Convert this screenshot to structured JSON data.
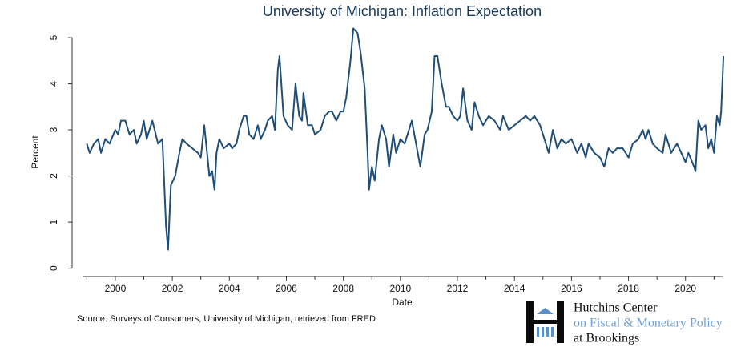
{
  "chart_data": {
    "type": "line",
    "title": "University of Michigan: Inflation Expectation",
    "xlabel": "Date",
    "ylabel": "Percent",
    "source": "Source: Surveys of Consumers, University of Michigan, retrieved from FRED",
    "logo": {
      "line1": "Hutchins Center",
      "line2": "on Fiscal & Monetary Policy",
      "line3": "at Brookings"
    },
    "xlim": [
      1998.85,
      2021.3
    ],
    "ylim": [
      -0.18,
      5.4
    ],
    "xticks": [
      2000,
      2002,
      2004,
      2006,
      2008,
      2010,
      2012,
      2014,
      2016,
      2018,
      2020
    ],
    "xminorticks": [
      1999,
      2001,
      2003,
      2005,
      2007,
      2009,
      2011,
      2013,
      2015,
      2017,
      2019,
      2021
    ],
    "yticks": [
      0,
      1,
      2,
      3,
      4,
      5
    ],
    "grid": false,
    "series": [
      {
        "name": "Inflation Expectation",
        "color": "#1f4e79",
        "x": [
          1999.0,
          1999.1,
          1999.25,
          1999.4,
          1999.5,
          1999.65,
          1999.8,
          2000.0,
          2000.1,
          2000.2,
          2000.35,
          2000.5,
          2000.65,
          2000.75,
          2000.9,
          2001.0,
          2001.1,
          2001.2,
          2001.3,
          2001.5,
          2001.65,
          2001.78,
          2001.85,
          2001.95,
          2002.1,
          2002.25,
          2002.35,
          2002.5,
          2002.7,
          2002.9,
          2003.0,
          2003.12,
          2003.3,
          2003.4,
          2003.48,
          2003.55,
          2003.65,
          2003.8,
          2004.0,
          2004.1,
          2004.25,
          2004.35,
          2004.5,
          2004.6,
          2004.7,
          2004.85,
          2005.0,
          2005.1,
          2005.25,
          2005.35,
          2005.5,
          2005.6,
          2005.7,
          2005.76,
          2005.9,
          2006.05,
          2006.2,
          2006.32,
          2006.45,
          2006.55,
          2006.6,
          2006.75,
          2006.9,
          2007.0,
          2007.2,
          2007.35,
          2007.5,
          2007.6,
          2007.75,
          2007.9,
          2008.0,
          2008.1,
          2008.25,
          2008.35,
          2008.5,
          2008.6,
          2008.75,
          2008.85,
          2008.9,
          2009.0,
          2009.1,
          2009.25,
          2009.35,
          2009.5,
          2009.6,
          2009.75,
          2009.85,
          2010.0,
          2010.15,
          2010.3,
          2010.4,
          2010.55,
          2010.7,
          2010.85,
          2010.95,
          2011.1,
          2011.2,
          2011.3,
          2011.45,
          2011.6,
          2011.7,
          2011.85,
          2012.0,
          2012.1,
          2012.2,
          2012.35,
          2012.5,
          2012.6,
          2012.75,
          2012.9,
          2013.1,
          2013.3,
          2013.5,
          2013.6,
          2013.8,
          2014.0,
          2014.2,
          2014.4,
          2014.55,
          2014.7,
          2014.9,
          2015.0,
          2015.2,
          2015.35,
          2015.5,
          2015.65,
          2015.8,
          2016.0,
          2016.2,
          2016.35,
          2016.5,
          2016.6,
          2016.8,
          2017.0,
          2017.15,
          2017.3,
          2017.45,
          2017.6,
          2017.8,
          2018.0,
          2018.15,
          2018.35,
          2018.5,
          2018.6,
          2018.7,
          2018.85,
          2019.0,
          2019.2,
          2019.3,
          2019.5,
          2019.7,
          2019.85,
          2020.0,
          2020.1,
          2020.3,
          2020.35,
          2020.45,
          2020.55,
          2020.7,
          2020.8,
          2020.9,
          2021.0,
          2021.1,
          2021.2,
          2021.25,
          2021.33
        ],
        "values": [
          2.7,
          2.5,
          2.7,
          2.8,
          2.5,
          2.8,
          2.7,
          3.0,
          2.9,
          3.2,
          3.2,
          2.9,
          3.0,
          2.7,
          2.9,
          3.2,
          2.8,
          3.0,
          3.2,
          2.7,
          2.8,
          0.9,
          0.4,
          1.8,
          2.0,
          2.5,
          2.8,
          2.7,
          2.6,
          2.5,
          2.4,
          3.1,
          2.0,
          2.1,
          1.7,
          2.5,
          2.8,
          2.6,
          2.7,
          2.6,
          2.7,
          3.0,
          3.3,
          3.3,
          2.9,
          2.8,
          3.1,
          2.8,
          3.0,
          3.2,
          3.3,
          3.0,
          4.3,
          4.6,
          3.3,
          3.1,
          3.0,
          4.0,
          3.3,
          3.2,
          3.8,
          3.1,
          3.1,
          2.9,
          3.0,
          3.3,
          3.4,
          3.4,
          3.2,
          3.4,
          3.4,
          3.7,
          4.5,
          5.2,
          5.1,
          4.7,
          3.9,
          2.5,
          1.7,
          2.2,
          1.9,
          2.8,
          3.1,
          2.8,
          2.2,
          2.9,
          2.5,
          2.8,
          2.7,
          3.0,
          3.2,
          2.7,
          2.2,
          2.9,
          3.0,
          3.4,
          4.6,
          4.6,
          4.0,
          3.5,
          3.5,
          3.3,
          3.2,
          3.3,
          3.9,
          3.2,
          3.0,
          3.6,
          3.3,
          3.1,
          3.3,
          3.2,
          3.0,
          3.3,
          3.0,
          3.1,
          3.2,
          3.3,
          3.2,
          3.3,
          3.1,
          2.9,
          2.5,
          3.0,
          2.6,
          2.8,
          2.7,
          2.8,
          2.5,
          2.7,
          2.4,
          2.7,
          2.5,
          2.4,
          2.2,
          2.6,
          2.5,
          2.6,
          2.6,
          2.4,
          2.7,
          2.8,
          3.0,
          2.8,
          3.0,
          2.7,
          2.6,
          2.5,
          2.9,
          2.5,
          2.7,
          2.5,
          2.3,
          2.5,
          2.2,
          2.1,
          3.2,
          3.0,
          3.1,
          2.6,
          2.8,
          2.5,
          3.3,
          3.1,
          3.4,
          4.6
        ]
      }
    ]
  }
}
